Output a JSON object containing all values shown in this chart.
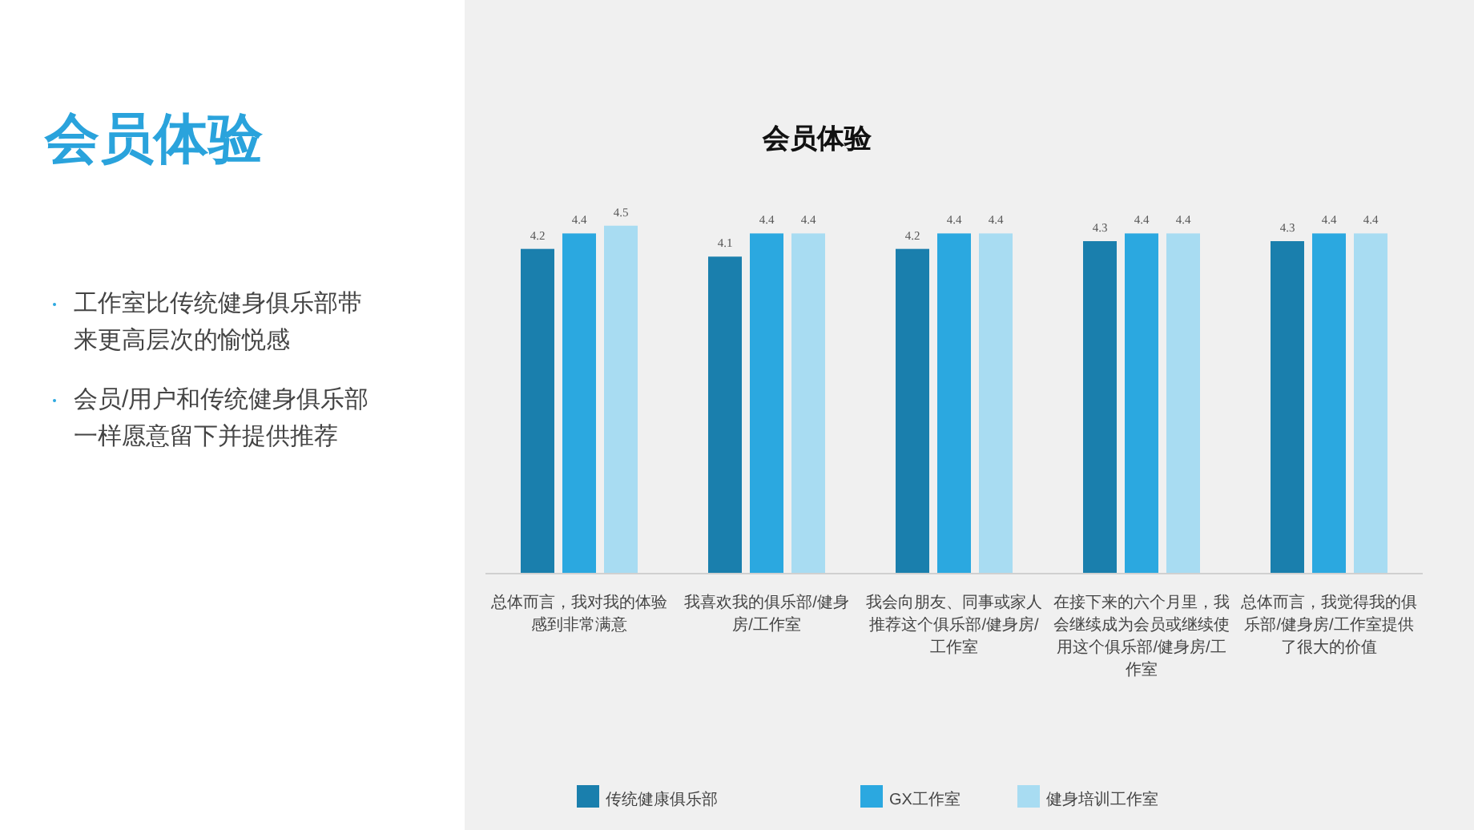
{
  "chart_data": {
    "type": "bar",
    "title": "会员体验",
    "annotations": [
      "会员体验",
      "工作室比传统健身俱乐部带来更高层次的愉悦感",
      "会员/用户和传统健身俱乐部一样愿意留下并提供推荐"
    ],
    "categories": [
      "总体而言，我对我的体验感到非常满意",
      "我喜欢我的俱乐部/健身房/工作室",
      "我会向朋友、同事或家人推荐这个俱乐部/健身房/工作室",
      "在接下来的六个月里，我会继续成为会员或继续使用这个俱乐部/健身房/工作室",
      "总体而言，我觉得我的俱乐部/健身房/工作室提供了很大的价值"
    ],
    "series": [
      {
        "name": "传统健康俱乐部",
        "color": "#1a7fad",
        "values": [
          4.2,
          4.1,
          4.2,
          4.3,
          4.3
        ]
      },
      {
        "name": "GX工作室",
        "color": "#2ba8e0",
        "values": [
          4.4,
          4.4,
          4.4,
          4.4,
          4.4
        ]
      },
      {
        "name": "健身培训工作室",
        "color": "#a8dcf2",
        "values": [
          4.5,
          4.4,
          4.4,
          4.4,
          4.4
        ]
      }
    ],
    "data_labels": true,
    "legend": "bottom",
    "tick_labels": "x"
  }
}
